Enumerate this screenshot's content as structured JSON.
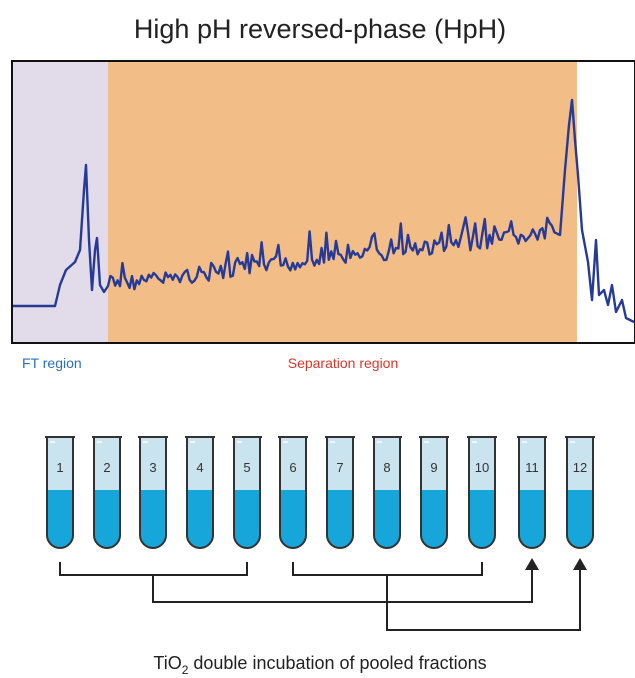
{
  "title": "High pH reversed-phase (HpH)",
  "regions": {
    "ft": "FT region",
    "separation": "Separation region"
  },
  "tubes": [
    "1",
    "2",
    "3",
    "4",
    "5",
    "6",
    "7",
    "8",
    "9",
    "10",
    "11",
    "12"
  ],
  "caption": {
    "prefix": "TiO",
    "subscript": "2",
    "rest": " double incubation of pooled fractions"
  }
}
